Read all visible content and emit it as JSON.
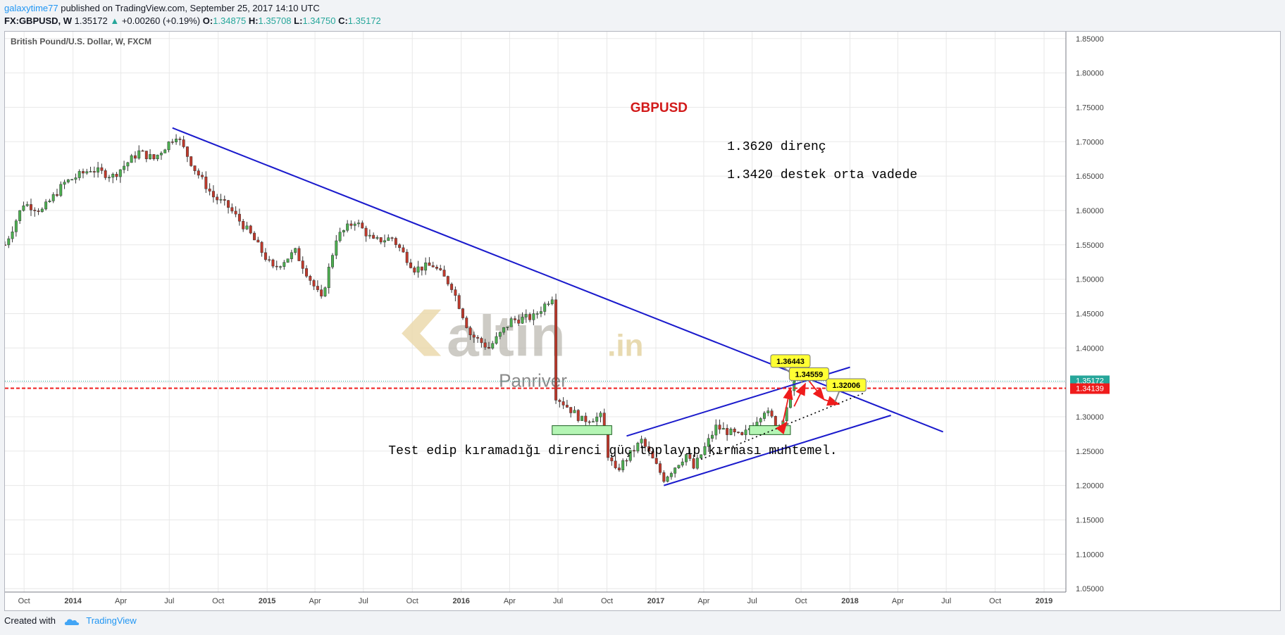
{
  "header": {
    "user": "galaxytime77",
    "published_text": " published on TradingView.com, September 25, 2017 14:10 UTC",
    "symbol": "FX:GBPUSD, W",
    "last": "1.35172",
    "arrow": "▲",
    "change": "+0.00260 (+0.19%)",
    "o_label": "O:",
    "o_value": "1.34875",
    "h_label": "H:",
    "h_value": "1.35708",
    "l_label": "L:",
    "l_value": "1.34750",
    "c_label": "C:",
    "c_value": "1.35172"
  },
  "footer": {
    "created_with": "Created with",
    "brand": "TradingView",
    "logo_icon": "tradingview-cloud-icon"
  },
  "colors": {
    "up": "#4caf50",
    "down": "#c0392b",
    "trend": "#1a1acc",
    "support": "#ef1c1c",
    "note": "#b4f5b4",
    "callout": "#ffff33",
    "title_red": "#d21a1a"
  },
  "chart_data": {
    "type": "candlestick",
    "series_label": "British Pound/U.S. Dollar, W, FXCM",
    "ylim": [
      1.045,
      1.86
    ],
    "xlim": [
      "2013-08-26",
      "2019-02-11"
    ],
    "y_ticks": [
      "1.85000",
      "1.80000",
      "1.75000",
      "1.70000",
      "1.65000",
      "1.60000",
      "1.55000",
      "1.50000",
      "1.45000",
      "1.40000",
      "1.35000",
      "1.30000",
      "1.25000",
      "1.20000",
      "1.15000",
      "1.10000",
      "1.05000"
    ],
    "x_ticks": [
      {
        "label": "Oct",
        "date": "2013-10-01"
      },
      {
        "label": "2014",
        "date": "2014-01-01"
      },
      {
        "label": "Apr",
        "date": "2014-04-01"
      },
      {
        "label": "Jul",
        "date": "2014-07-01"
      },
      {
        "label": "Oct",
        "date": "2014-10-01"
      },
      {
        "label": "2015",
        "date": "2015-01-01"
      },
      {
        "label": "Apr",
        "date": "2015-04-01"
      },
      {
        "label": "Jul",
        "date": "2015-07-01"
      },
      {
        "label": "Oct",
        "date": "2015-10-01"
      },
      {
        "label": "2016",
        "date": "2016-01-01"
      },
      {
        "label": "Apr",
        "date": "2016-04-01"
      },
      {
        "label": "Jul",
        "date": "2016-07-01"
      },
      {
        "label": "Oct",
        "date": "2016-10-01"
      },
      {
        "label": "2017",
        "date": "2017-01-01"
      },
      {
        "label": "Apr",
        "date": "2017-04-01"
      },
      {
        "label": "Jul",
        "date": "2017-07-01"
      },
      {
        "label": "Oct",
        "date": "2017-10-01"
      },
      {
        "label": "2018",
        "date": "2018-01-01"
      },
      {
        "label": "Apr",
        "date": "2018-04-01"
      },
      {
        "label": "Jul",
        "date": "2018-07-01"
      },
      {
        "label": "Oct",
        "date": "2018-10-01"
      },
      {
        "label": "2019",
        "date": "2019-01-01"
      }
    ],
    "closes": [
      {
        "d": "2013-08-26",
        "c": 1.55
      },
      {
        "d": "2013-09-30",
        "c": 1.61
      },
      {
        "d": "2013-11-04",
        "c": 1.6
      },
      {
        "d": "2013-12-16",
        "c": 1.64
      },
      {
        "d": "2014-02-03",
        "c": 1.66
      },
      {
        "d": "2014-03-17",
        "c": 1.65
      },
      {
        "d": "2014-05-05",
        "c": 1.685
      },
      {
        "d": "2014-06-02",
        "c": 1.675
      },
      {
        "d": "2014-07-14",
        "c": 1.71
      },
      {
        "d": "2014-08-18",
        "c": 1.66
      },
      {
        "d": "2014-09-22",
        "c": 1.62
      },
      {
        "d": "2014-10-20",
        "c": 1.605
      },
      {
        "d": "2014-12-01",
        "c": 1.565
      },
      {
        "d": "2015-01-12",
        "c": 1.515
      },
      {
        "d": "2015-02-23",
        "c": 1.54
      },
      {
        "d": "2015-04-13",
        "c": 1.47
      },
      {
        "d": "2015-05-11",
        "c": 1.56
      },
      {
        "d": "2015-06-15",
        "c": 1.585
      },
      {
        "d": "2015-07-20",
        "c": 1.555
      },
      {
        "d": "2015-08-24",
        "c": 1.56
      },
      {
        "d": "2015-10-05",
        "c": 1.515
      },
      {
        "d": "2015-11-09",
        "c": 1.52
      },
      {
        "d": "2015-12-14",
        "c": 1.49
      },
      {
        "d": "2016-01-18",
        "c": 1.42
      },
      {
        "d": "2016-02-22",
        "c": 1.4
      },
      {
        "d": "2016-04-04",
        "c": 1.44
      },
      {
        "d": "2016-05-16",
        "c": 1.445
      },
      {
        "d": "2016-06-20",
        "c": 1.475
      },
      {
        "d": "2016-06-27",
        "c": 1.33
      },
      {
        "d": "2016-07-11",
        "c": 1.32
      },
      {
        "d": "2016-08-15",
        "c": 1.295
      },
      {
        "d": "2016-09-19",
        "c": 1.3
      },
      {
        "d": "2016-10-03",
        "c": 1.245
      },
      {
        "d": "2016-10-17",
        "c": 1.22
      },
      {
        "d": "2016-12-05",
        "c": 1.265
      },
      {
        "d": "2017-01-16",
        "c": 1.21
      },
      {
        "d": "2017-02-27",
        "c": 1.245
      },
      {
        "d": "2017-03-13",
        "c": 1.225
      },
      {
        "d": "2017-04-24",
        "c": 1.285
      },
      {
        "d": "2017-06-12",
        "c": 1.27
      },
      {
        "d": "2017-07-24",
        "c": 1.31
      },
      {
        "d": "2017-08-21",
        "c": 1.285
      },
      {
        "d": "2017-09-04",
        "c": 1.315
      },
      {
        "d": "2017-09-18",
        "c": 1.35172
      }
    ],
    "current_price": {
      "value": 1.35172,
      "label": "1.35172"
    },
    "support_line": {
      "value": 1.34139,
      "label": "1.34139"
    },
    "trendlines": [
      {
        "name": "downtrend-line",
        "points": [
          {
            "d": "2014-07-07",
            "v": 1.72
          },
          {
            "d": "2018-06-25",
            "v": 1.278
          }
        ]
      },
      {
        "name": "channel-upper-line",
        "points": [
          {
            "d": "2016-11-07",
            "v": 1.272
          },
          {
            "d": "2018-01-01",
            "v": 1.372
          }
        ]
      },
      {
        "name": "channel-lower-line",
        "points": [
          {
            "d": "2017-01-16",
            "v": 1.2
          },
          {
            "d": "2018-03-19",
            "v": 1.302
          }
        ]
      }
    ],
    "dotted_line": {
      "points": [
        {
          "d": "2017-03-27",
          "v": 1.238
        },
        {
          "d": "2018-01-29",
          "v": 1.335
        }
      ]
    },
    "zones": [
      {
        "name": "support-zone-2016",
        "d1": "2016-06-20",
        "d2": "2016-10-10",
        "v1": 1.287,
        "v2": 1.274
      },
      {
        "name": "support-zone-2017",
        "d1": "2017-06-26",
        "d2": "2017-09-11",
        "v1": 1.287,
        "v2": 1.274
      }
    ],
    "callouts": [
      {
        "label": "1.36443",
        "d": "2017-09-11",
        "v": 1.381,
        "anchor_d": "2017-09-11",
        "anchor_v": 1.364
      },
      {
        "label": "1.34559",
        "d": "2017-10-16",
        "v": 1.362,
        "anchor_d": "2017-10-02",
        "anchor_v": 1.349
      },
      {
        "label": "1.32006",
        "d": "2017-12-25",
        "v": 1.346,
        "anchor_d": "2017-12-04",
        "anchor_v": 1.322
      }
    ],
    "arrows": [
      {
        "from": {
          "d": "2017-08-28",
          "v": 1.285
        },
        "to": {
          "d": "2017-09-04",
          "v": 1.292
        }
      },
      {
        "from": {
          "d": "2017-08-28",
          "v": 1.292
        },
        "to": {
          "d": "2017-09-11",
          "v": 1.342
        }
      },
      {
        "from": {
          "d": "2017-09-18",
          "v": 1.315
        },
        "to": {
          "d": "2017-10-09",
          "v": 1.348
        }
      },
      {
        "from": {
          "d": "2017-10-16",
          "v": 1.352
        },
        "to": {
          "d": "2017-11-13",
          "v": 1.325
        }
      },
      {
        "from": {
          "d": "2017-11-13",
          "v": 1.325
        },
        "to": {
          "d": "2017-12-11",
          "v": 1.318
        }
      }
    ],
    "annotations": {
      "title": "GBPUSD",
      "resistance": "1.3620 direnç",
      "support": "1.3420 destek  orta vadede",
      "bottom_note": "Test edip kıramadığı direnci güç toplayıp kırması muhtemel."
    },
    "watermark": {
      "brand": "altin",
      "suffix": ".in",
      "sub": "Panriver",
      "icon": "altin-logo-icon"
    }
  }
}
